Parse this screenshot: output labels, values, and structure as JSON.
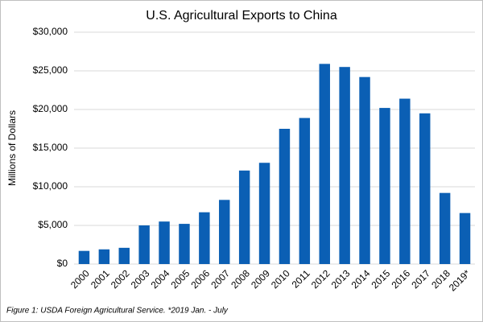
{
  "chart_data": {
    "type": "bar",
    "title": "U.S. Agricultural Exports to China",
    "y_label": "Millions of Dollars",
    "caption": "Figure 1: USDA Foreign Agricultural Service. *2019 Jan. - July",
    "categories": [
      "2000",
      "2001",
      "2002",
      "2003",
      "2004",
      "2005",
      "2006",
      "2007",
      "2008",
      "2009",
      "2010",
      "2011",
      "2012",
      "2013",
      "2014",
      "2015",
      "2016",
      "2017",
      "2018",
      "2019*"
    ],
    "values": [
      1700,
      1900,
      2100,
      5000,
      5500,
      5200,
      6700,
      8300,
      12100,
      13100,
      17500,
      18900,
      25900,
      25500,
      24200,
      20200,
      21400,
      19500,
      9200,
      6600
    ],
    "color": "#0b5fb4",
    "ylim": [
      0,
      30000
    ],
    "yticks": [
      {
        "value": 0,
        "label": "$0"
      },
      {
        "value": 5000,
        "label": "$5,000"
      },
      {
        "value": 10000,
        "label": "$10,000"
      },
      {
        "value": 15000,
        "label": "$15,000"
      },
      {
        "value": 20000,
        "label": "$20,000"
      },
      {
        "value": 25000,
        "label": "$25,000"
      },
      {
        "value": 30000,
        "label": "$30,000"
      }
    ],
    "grid": true
  }
}
